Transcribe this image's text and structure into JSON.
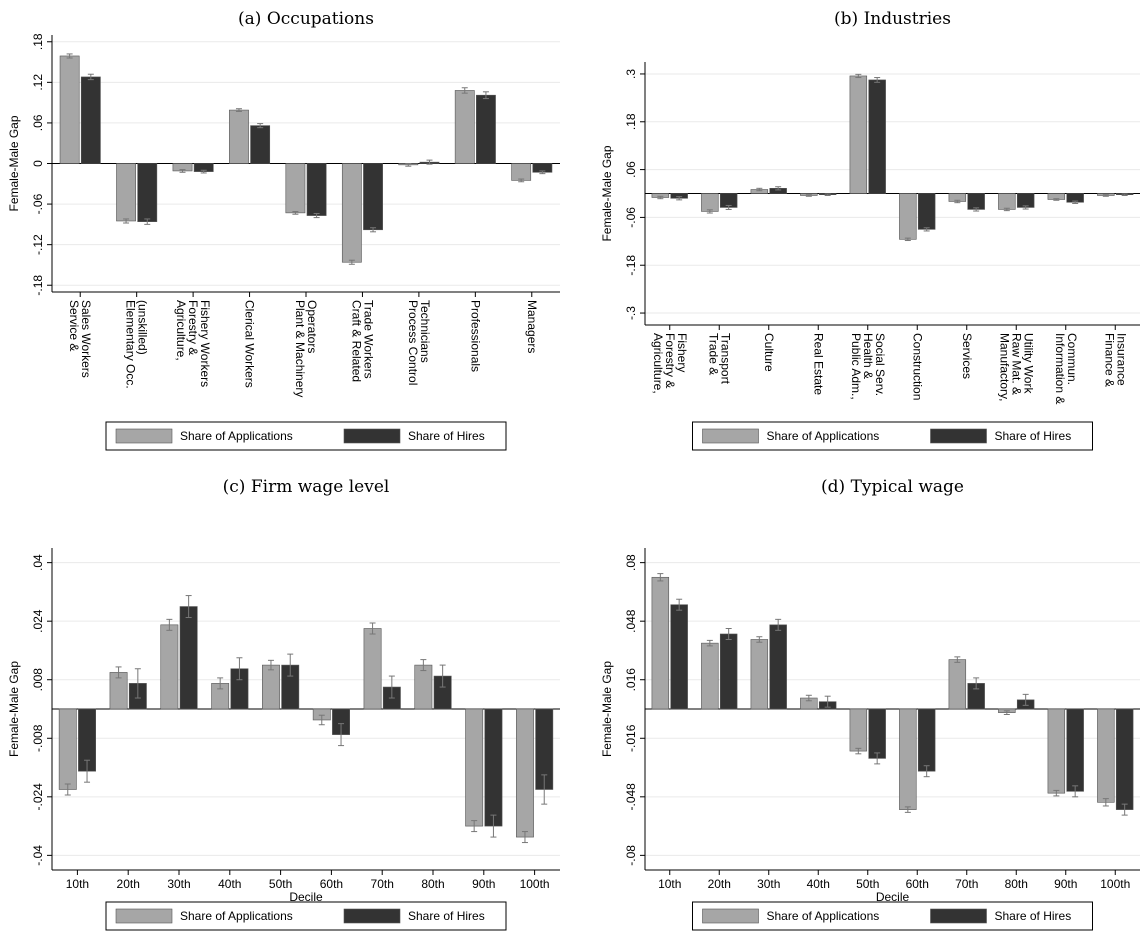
{
  "chart_data": [
    {
      "type": "bar",
      "title": "(a) Occupations",
      "ylabel": "Female-Male Gap",
      "categories": [
        [
          "Service &",
          "Sales Workers"
        ],
        [
          "Elementary Occ.",
          "(unskilled)"
        ],
        [
          "Agriculture,",
          "Forestry &",
          "Fishery Workers"
        ],
        [
          "Clerical Workers"
        ],
        [
          "Plant & Machinery",
          "Operators"
        ],
        [
          "Craft & Related",
          "Trade Workers"
        ],
        [
          "Process Control",
          "Technicians"
        ],
        [
          "Professionals"
        ],
        [
          "Managers"
        ]
      ],
      "series": [
        {
          "name": "Share of Applications",
          "color": "#a6a6a6",
          "values": [
            0.159,
            -0.085,
            -0.011,
            0.079,
            -0.073,
            -0.146,
            -0.002,
            0.108,
            -0.025
          ],
          "errors": [
            0.003,
            0.003,
            0.002,
            0.002,
            0.002,
            0.003,
            0.002,
            0.004,
            0.002
          ]
        },
        {
          "name": "Share of Hires",
          "color": "#333333",
          "values": [
            0.128,
            -0.086,
            -0.012,
            0.056,
            -0.077,
            -0.098,
            0.002,
            0.101,
            -0.013
          ],
          "errors": [
            0.004,
            0.004,
            0.002,
            0.003,
            0.003,
            0.003,
            0.003,
            0.005,
            0.002
          ]
        }
      ],
      "ylim": [
        -0.19,
        0.19
      ],
      "yticks": [
        {
          "value": 0.18,
          "label": ".18"
        },
        {
          "value": 0.12,
          "label": ".12"
        },
        {
          "value": 0.06,
          "label": ".06"
        },
        0,
        {
          "value": -0.06,
          "label": "-.06"
        },
        {
          "value": -0.12,
          "label": "-.12"
        },
        {
          "value": -0.18,
          "label": "-.18"
        }
      ],
      "grid": true
    },
    {
      "type": "bar",
      "title": "(b) Industries",
      "ylabel": "Female-Male Gap",
      "categories": [
        [
          "Agriculture,",
          "Forestry &",
          "Fishery"
        ],
        [
          "Trade &",
          "Transport"
        ],
        [
          "Culture"
        ],
        [
          "Real Estate"
        ],
        [
          "Public Adm.,",
          "Health &",
          "Social Serv."
        ],
        [
          "Construction"
        ],
        [
          "Services"
        ],
        [
          "Manufactory,",
          "Raw Mat. &",
          "Utility Work"
        ],
        [
          "Information &",
          "Commun."
        ],
        [
          "Finance &",
          "Insurance"
        ]
      ],
      "series": [
        {
          "name": "Share of Applications",
          "color": "#a6a6a6",
          "values": [
            -0.01,
            -0.045,
            0.01,
            -0.005,
            0.295,
            -0.115,
            -0.02,
            -0.04,
            -0.015,
            -0.005
          ],
          "errors": [
            0.003,
            0.004,
            0.003,
            0.002,
            0.004,
            0.003,
            0.003,
            0.003,
            0.002,
            0.002
          ]
        },
        {
          "name": "Share of Hires",
          "color": "#333333",
          "values": [
            -0.012,
            -0.035,
            0.013,
            -0.003,
            0.285,
            -0.09,
            -0.04,
            -0.035,
            -0.022,
            -0.003
          ],
          "errors": [
            0.004,
            0.005,
            0.004,
            0.002,
            0.006,
            0.004,
            0.004,
            0.004,
            0.003,
            0.002
          ]
        }
      ],
      "ylim": [
        -0.33,
        0.33
      ],
      "yticks": [
        {
          "value": 0.3,
          "label": ".3"
        },
        {
          "value": 0.18,
          "label": ".18"
        },
        {
          "value": 0.06,
          "label": ".06"
        },
        {
          "value": -0.06,
          "label": "-.06"
        },
        {
          "value": -0.18,
          "label": "-.18"
        },
        {
          "value": -0.3,
          "label": "-.3"
        }
      ],
      "grid": true
    },
    {
      "type": "bar",
      "title": "(c) Firm wage level",
      "ylabel": "Female-Male Gap",
      "xlabel": "Decile",
      "categories": [
        "10th",
        "20th",
        "30th",
        "40th",
        "50th",
        "60th",
        "70th",
        "80th",
        "90th",
        "100th"
      ],
      "series": [
        {
          "name": "Share of Applications",
          "color": "#a6a6a6",
          "values": [
            -0.022,
            0.01,
            0.023,
            0.007,
            0.012,
            -0.003,
            0.022,
            0.012,
            -0.032,
            -0.035
          ],
          "errors": [
            0.0015,
            0.0015,
            0.0015,
            0.0015,
            0.0013,
            0.0013,
            0.0015,
            0.0015,
            0.0015,
            0.0015
          ]
        },
        {
          "name": "Share of Hires",
          "color": "#333333",
          "values": [
            -0.017,
            0.007,
            0.028,
            0.011,
            0.012,
            -0.007,
            0.006,
            0.009,
            -0.032,
            -0.022
          ],
          "errors": [
            0.003,
            0.004,
            0.003,
            0.003,
            0.003,
            0.003,
            0.003,
            0.003,
            0.003,
            0.004
          ]
        }
      ],
      "ylim": [
        -0.044,
        0.044
      ],
      "yticks": [
        {
          "value": 0.04,
          "label": ".04"
        },
        {
          "value": 0.024,
          "label": ".024"
        },
        {
          "value": 0.008,
          "label": ".008"
        },
        {
          "value": -0.008,
          "label": "-.008"
        },
        {
          "value": -0.024,
          "label": "-.024"
        },
        {
          "value": -0.04,
          "label": "-.04"
        }
      ],
      "grid": true
    },
    {
      "type": "bar",
      "title": "(d) Typical wage",
      "ylabel": "Female-Male Gap",
      "xlabel": "Decile",
      "categories": [
        "10th",
        "20th",
        "30th",
        "40th",
        "50th",
        "60th",
        "70th",
        "80th",
        "90th",
        "100th"
      ],
      "series": [
        {
          "name": "Share of Applications",
          "color": "#a6a6a6",
          "values": [
            0.072,
            0.036,
            0.038,
            0.006,
            -0.023,
            -0.055,
            0.027,
            -0.002,
            -0.046,
            -0.051
          ],
          "errors": [
            0.002,
            0.0015,
            0.0015,
            0.0015,
            0.0015,
            0.0015,
            0.0015,
            0.001,
            0.0015,
            0.002
          ]
        },
        {
          "name": "Share of Hires",
          "color": "#333333",
          "values": [
            0.057,
            0.041,
            0.046,
            0.004,
            -0.027,
            -0.034,
            0.014,
            0.005,
            -0.045,
            -0.055
          ],
          "errors": [
            0.003,
            0.003,
            0.003,
            0.003,
            0.003,
            0.003,
            0.003,
            0.003,
            0.003,
            0.003
          ]
        }
      ],
      "ylim": [
        -0.088,
        0.088
      ],
      "yticks": [
        {
          "value": 0.08,
          "label": ".08"
        },
        {
          "value": 0.048,
          "label": ".048"
        },
        {
          "value": 0.016,
          "label": ".016"
        },
        {
          "value": -0.016,
          "label": "-.016"
        },
        {
          "value": -0.048,
          "label": "-.048"
        },
        {
          "value": -0.08,
          "label": "-.08"
        }
      ],
      "grid": true
    }
  ]
}
